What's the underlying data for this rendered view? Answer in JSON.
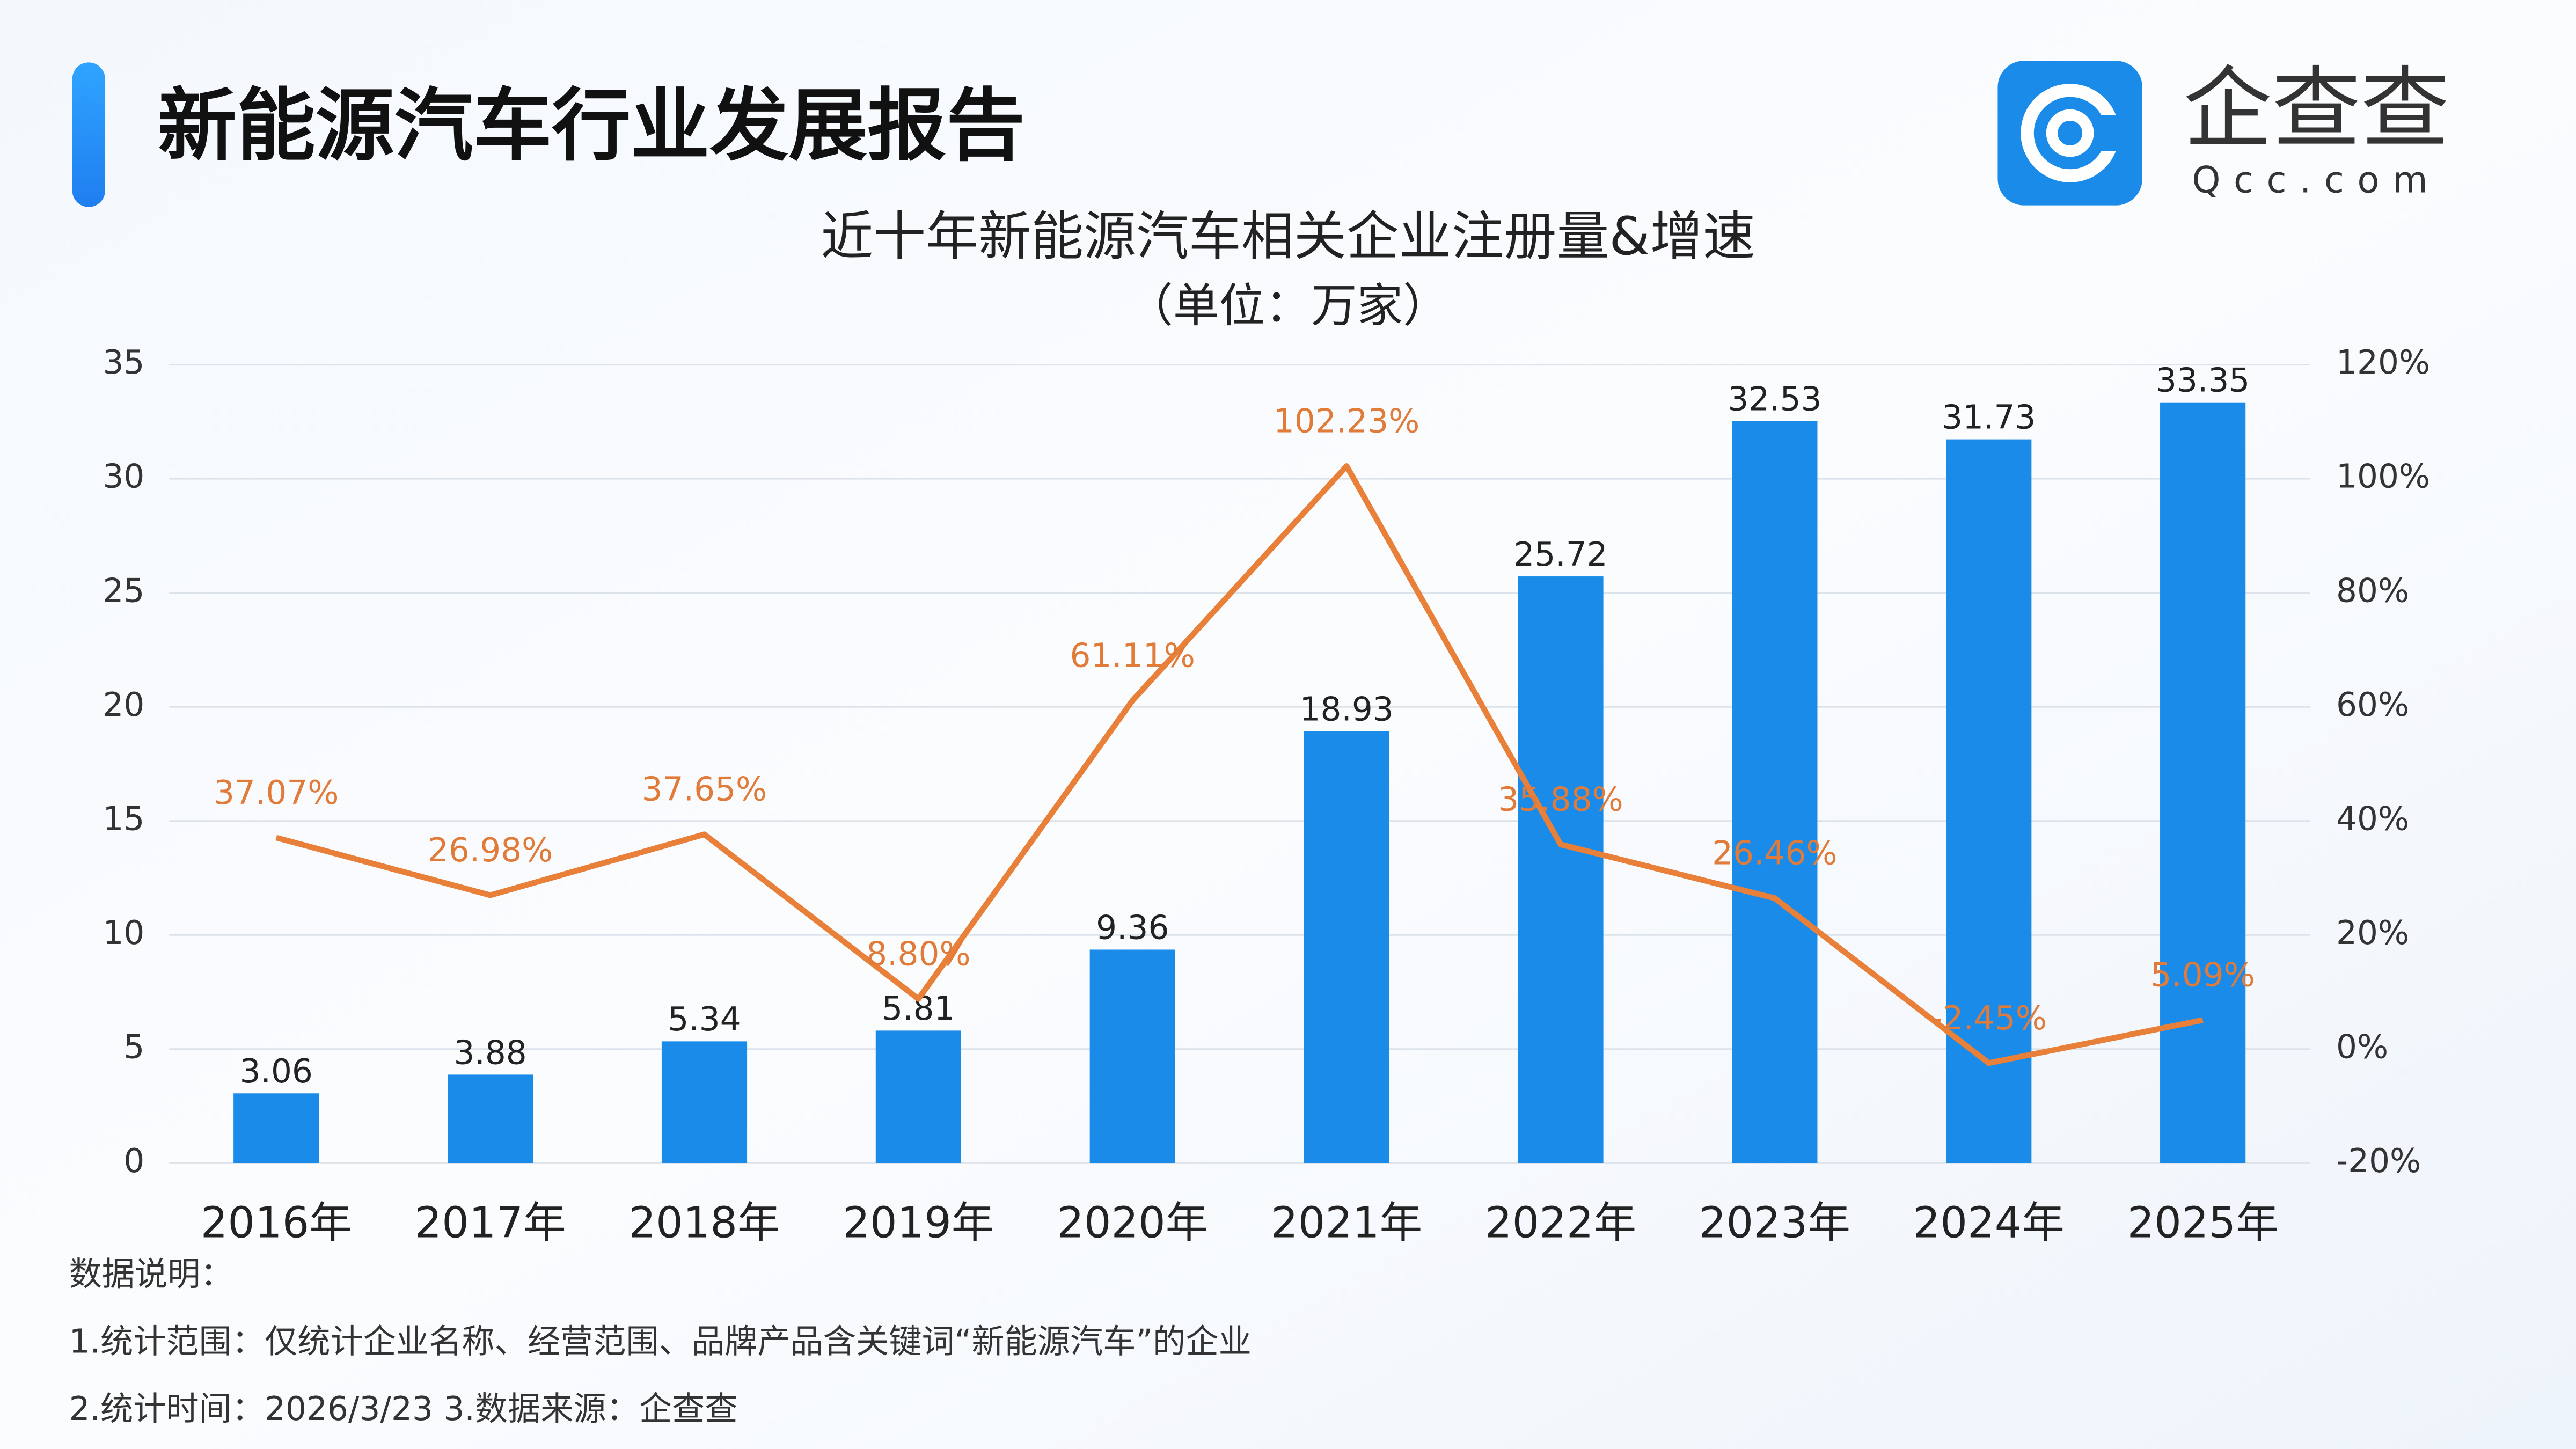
{
  "header": {
    "title": "新能源汽车行业发展报告",
    "logo": "企查查",
    "logo_sub": "Qcc.com"
  },
  "chart_data": {
    "type": "combo",
    "title": "近十年新能源汽车相关企业注册量&增速",
    "subtitle": "（单位：万家）",
    "categories": [
      "2016年",
      "2017年",
      "2018年",
      "2019年",
      "2020年",
      "2021年",
      "2022年",
      "2023年",
      "2024年",
      "2025年"
    ],
    "series": [
      {
        "type": "bar",
        "color": "#1a8be8",
        "values": [
          3.06,
          3.88,
          5.34,
          5.81,
          9.36,
          18.93,
          25.72,
          32.53,
          31.73,
          33.35
        ]
      },
      {
        "type": "line",
        "axis": "y2",
        "color": "#e8803a",
        "label_color": "#e07b39",
        "values": [
          37.07,
          26.98,
          37.65,
          8.8,
          61.11,
          102.23,
          35.88,
          26.46,
          -2.45,
          5.09
        ],
        "value_labels": [
          "37.07%",
          "26.98%",
          "37.65%",
          "8.80%",
          "61.11%",
          "102.23%",
          "35.88%",
          "26.46%",
          "-2.45%",
          "5.09%"
        ]
      }
    ],
    "ylim": [
      0,
      35
    ],
    "yticks": [
      0,
      5,
      10,
      15,
      20,
      25,
      30,
      35
    ],
    "y2lim": [
      -20,
      120
    ],
    "y2ticks": [
      {
        "value": -20,
        "label": "-20%"
      },
      {
        "value": 0,
        "label": "0%"
      },
      {
        "value": 20,
        "label": "20%"
      },
      {
        "value": 40,
        "label": "40%"
      },
      {
        "value": 60,
        "label": "60%"
      },
      {
        "value": 80,
        "label": "80%"
      },
      {
        "value": 100,
        "label": "100%"
      },
      {
        "value": 120,
        "label": "120%"
      }
    ],
    "grid": true
  },
  "notes": [
    "数据说明：",
    "1.统计范围：仅统计企业名称、经营范围、品牌产品含关键词“新能源汽车”的企业",
    "2.统计时间：2026/3/23  3.数据来源：企查查"
  ]
}
